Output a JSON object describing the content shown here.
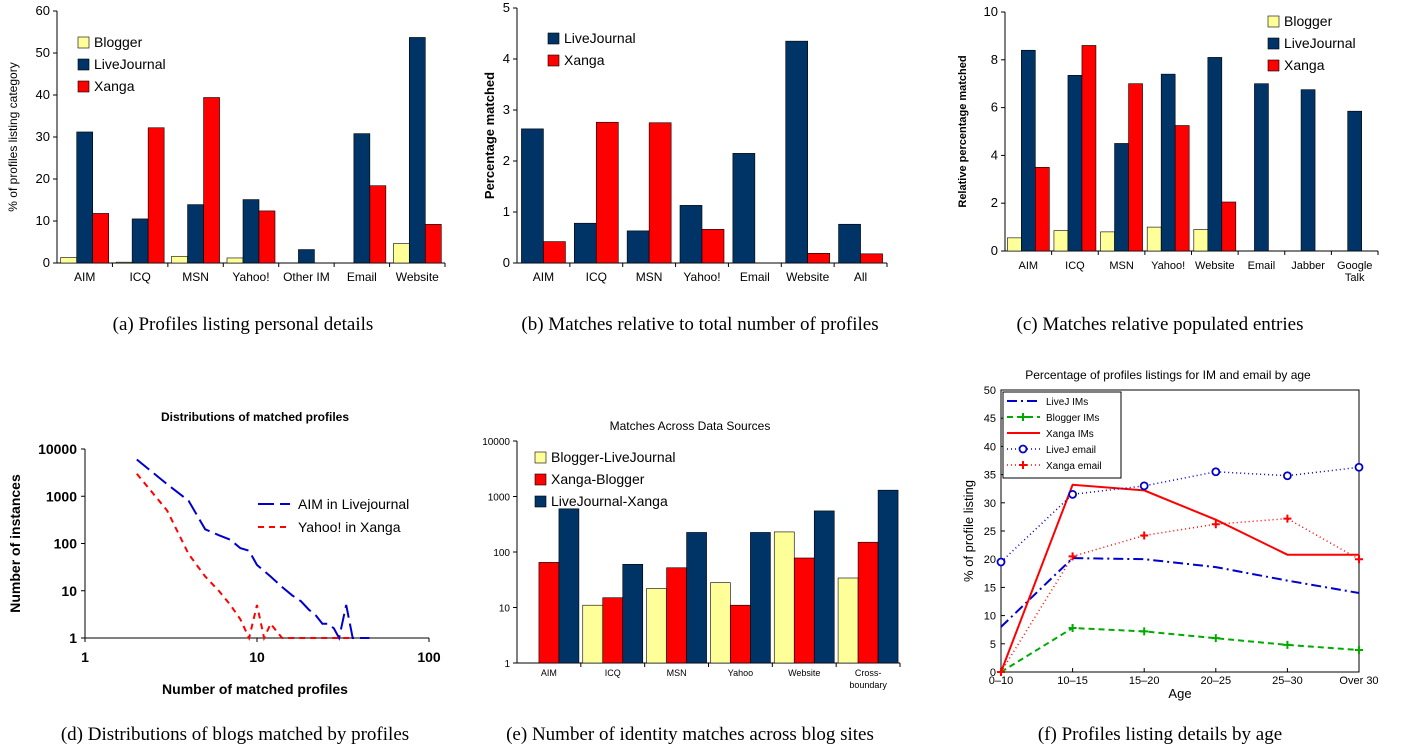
{
  "colors": {
    "blogger": "#ffff99",
    "livejournal": "#003366",
    "xanga": "#ff0000",
    "blue_line": "#0000cc",
    "green_line": "#00aa00"
  },
  "chart_data": [
    {
      "id": "a",
      "type": "bar",
      "caption": "(a) Profiles listing personal details",
      "title": "",
      "xlabel": "",
      "ylabel": "% of profiles listing category",
      "ylim": [
        0,
        60
      ],
      "yticks": [
        0,
        10,
        20,
        30,
        40,
        50,
        60
      ],
      "categories": [
        "AIM",
        "ICQ",
        "MSN",
        "Yahoo!",
        "Other IM",
        "Email",
        "Website"
      ],
      "legend_position": "top-left",
      "series": [
        {
          "name": "Blogger",
          "values": [
            1.3,
            0.2,
            1.6,
            1.2,
            0,
            0,
            4.6
          ]
        },
        {
          "name": "LiveJournal",
          "values": [
            31.2,
            10.5,
            13.9,
            15.1,
            3.2,
            30.8,
            53.7
          ]
        },
        {
          "name": "Xanga",
          "values": [
            11.8,
            32.2,
            39.4,
            12.4,
            0,
            18.4,
            9.2
          ]
        }
      ]
    },
    {
      "id": "b",
      "type": "bar",
      "caption": "(b) Matches relative to total number of profiles",
      "title": "",
      "xlabel": "",
      "ylabel": "Percentage matched",
      "ylim": [
        0,
        5
      ],
      "yticks": [
        0,
        1,
        2,
        3,
        4,
        5
      ],
      "categories": [
        "AIM",
        "ICQ",
        "MSN",
        "Yahoo!",
        "Email",
        "Website",
        "All"
      ],
      "legend_position": "top-left",
      "series": [
        {
          "name": "LiveJournal",
          "values": [
            2.63,
            0.78,
            0.63,
            1.13,
            2.15,
            4.35,
            0.76
          ]
        },
        {
          "name": "Xanga",
          "values": [
            0.42,
            2.76,
            2.75,
            0.66,
            0,
            0.19,
            0.18
          ]
        }
      ]
    },
    {
      "id": "c",
      "type": "bar",
      "caption": "(c) Matches relative populated entries",
      "title": "",
      "xlabel": "",
      "ylabel": "Relative percentage matched",
      "ylim": [
        0,
        10
      ],
      "yticks": [
        0,
        2,
        4,
        6,
        8,
        10
      ],
      "categories": [
        "AIM",
        "ICQ",
        "MSN",
        "Yahoo!",
        "Website",
        "Email",
        "Jabber",
        "Google Talk"
      ],
      "legend_position": "top-right",
      "series": [
        {
          "name": "Blogger",
          "values": [
            0.55,
            0.85,
            0.8,
            1.0,
            0.9,
            0,
            0,
            0
          ]
        },
        {
          "name": "LiveJournal",
          "values": [
            8.4,
            7.35,
            4.5,
            7.4,
            8.1,
            7.0,
            6.75,
            5.85
          ]
        },
        {
          "name": "Xanga",
          "values": [
            3.5,
            8.6,
            7.0,
            5.25,
            2.05,
            0,
            0,
            0
          ]
        }
      ]
    },
    {
      "id": "d",
      "type": "line",
      "caption": "(d) Distributions of blogs matched by profiles",
      "title": "Distributions of matched profiles",
      "xlabel": "Number of matched profiles",
      "ylabel": "Number of instances",
      "x_scale": "log",
      "y_scale": "log",
      "xlim": [
        1,
        100
      ],
      "ylim": [
        1,
        10000
      ],
      "xticks": [
        "1",
        "10",
        "100"
      ],
      "yticks": [
        "1",
        "10",
        "100",
        "1000",
        "10000"
      ],
      "legend_position": "center-right",
      "series": [
        {
          "name": "AIM in Livejournal",
          "x": [
            2,
            3,
            4,
            5,
            6,
            7,
            8,
            9,
            10,
            12,
            14,
            16,
            18,
            20,
            22,
            24,
            26,
            28,
            30,
            33,
            36,
            40,
            45
          ],
          "y": [
            6000,
            1800,
            800,
            200,
            150,
            120,
            80,
            70,
            35,
            20,
            12,
            8,
            6,
            4,
            3,
            2,
            2,
            1.6,
            1,
            5,
            1,
            1,
            1
          ]
        },
        {
          "name": "Yahoo! in Xanga",
          "x": [
            2,
            3,
            4,
            5,
            6,
            7,
            8,
            9,
            10,
            11,
            12,
            14,
            16,
            20,
            25,
            30,
            35
          ],
          "y": [
            3000,
            500,
            60,
            20,
            10,
            5,
            2.5,
            1,
            5,
            1,
            2,
            1,
            1,
            1,
            1,
            1,
            1
          ]
        }
      ]
    },
    {
      "id": "e",
      "type": "bar",
      "caption": "(e) Number of identity matches across blog sites",
      "title": "Matches Across Data Sources",
      "xlabel": "",
      "ylabel": "",
      "y_scale": "log",
      "ylim": [
        1,
        10000
      ],
      "yticks": [
        "1",
        "10",
        "100",
        "1000",
        "10000"
      ],
      "categories": [
        "AIM",
        "ICQ",
        "MSN",
        "Yahoo",
        "Website",
        "Cross-boundary"
      ],
      "legend_position": "top-left",
      "series": [
        {
          "name": "Blogger-LiveJournal",
          "values": [
            0,
            11,
            22,
            28,
            230,
            34
          ]
        },
        {
          "name": "Xanga-Blogger",
          "values": [
            65,
            15,
            52,
            11,
            78,
            150
          ]
        },
        {
          "name": "LiveJournal-Xanga",
          "values": [
            600,
            60,
            225,
            225,
            550,
            1300
          ]
        }
      ]
    },
    {
      "id": "f",
      "type": "line",
      "caption": "(f) Profiles listing details by age",
      "title": "Percentage of profiles listings for IM and email by age",
      "xlabel": "Age",
      "ylabel": "% of profile listing",
      "ylim": [
        0,
        50
      ],
      "yticks": [
        0,
        5,
        10,
        15,
        20,
        25,
        30,
        35,
        40,
        45,
        50
      ],
      "categories": [
        "0–10",
        "10–15",
        "15–20",
        "20–25",
        "25–30",
        "Over 30"
      ],
      "legend_position": "top-left",
      "series": [
        {
          "name": "LiveJ IMs",
          "values": [
            8,
            20.2,
            20,
            18.6,
            16.2,
            14
          ]
        },
        {
          "name": "Blogger IMs",
          "values": [
            0,
            7.8,
            7.2,
            6,
            4.8,
            3.9
          ]
        },
        {
          "name": "Xanga IMs",
          "values": [
            0,
            33.2,
            32.2,
            27,
            20.8,
            20.8
          ]
        },
        {
          "name": "LiveJ email",
          "values": [
            19.5,
            31.5,
            33,
            35.5,
            34.8,
            36.3
          ]
        },
        {
          "name": "Xanga email",
          "values": [
            0,
            20.5,
            24.2,
            26.2,
            27.2,
            20
          ]
        }
      ]
    }
  ]
}
